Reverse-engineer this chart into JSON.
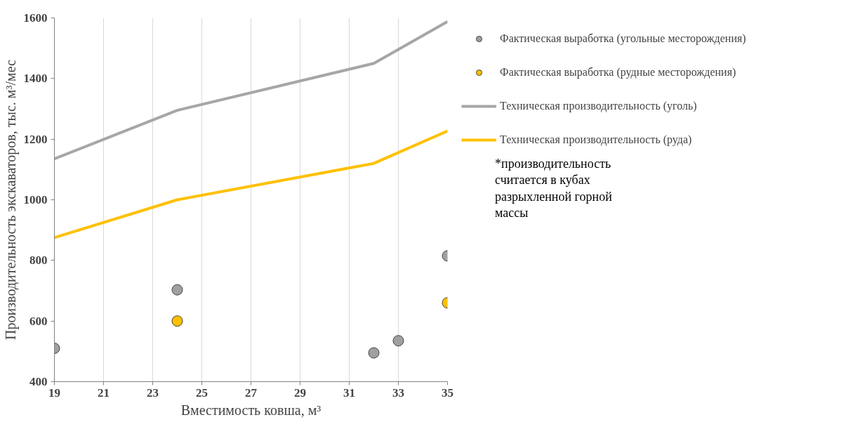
{
  "chart_data": {
    "type": "scatter",
    "xlabel": "Вместимость ковша, м³",
    "ylabel": "Производительность экскаваторов, тыс. м³/мес",
    "xlim": [
      19,
      35
    ],
    "xticks": [
      19,
      21,
      23,
      25,
      27,
      29,
      31,
      33,
      35
    ],
    "ylim": [
      400,
      1600
    ],
    "yticks": [
      400,
      600,
      800,
      1000,
      1200,
      1400,
      1600
    ],
    "grid": "x",
    "legend": "right",
    "series": [
      {
        "name": "Фактическая выработка (угольные месторождения)",
        "marker": "circle",
        "color": "#a0a0a0",
        "x": [
          19,
          24,
          32,
          33,
          35
        ],
        "values": [
          510,
          703,
          495,
          535,
          815
        ]
      },
      {
        "name": "Фактическая выработка (рудные месторождения)",
        "marker": "circle",
        "color": "#ffc000",
        "x": [
          24,
          35
        ],
        "values": [
          600,
          660
        ]
      },
      {
        "name": "Техническая производительность (уголь)",
        "type": "line",
        "color": "#a6a6a6",
        "x": [
          19,
          24,
          32,
          35
        ],
        "values": [
          1135,
          1295,
          1450,
          1588
        ]
      },
      {
        "name": "Техническая производительность (руда)",
        "type": "line",
        "color": "#ffc000",
        "x": [
          19,
          24,
          32,
          35
        ],
        "values": [
          875,
          1000,
          1120,
          1227
        ]
      }
    ],
    "annotations": [
      "*производительность считается в кубах разрыхленной горной массы"
    ]
  }
}
